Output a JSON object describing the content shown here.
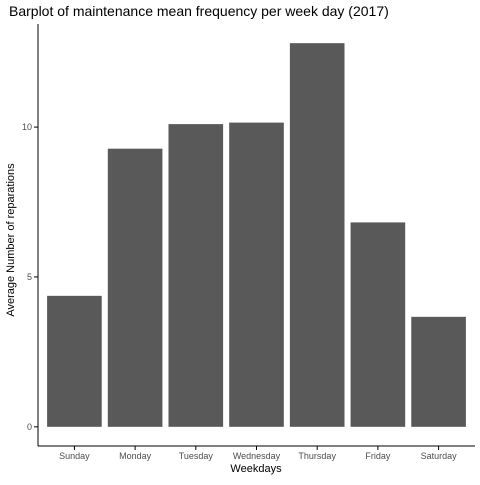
{
  "chart_data": {
    "type": "bar",
    "title": "Barplot of maintenance mean frequency per week day (2017)",
    "xlabel": "Weekdays",
    "ylabel": "Average Number of reparations",
    "categories": [
      "Sunday",
      "Monday",
      "Tuesday",
      "Wednesday",
      "Thursday",
      "Friday",
      "Saturday"
    ],
    "values": [
      4.37,
      9.28,
      10.1,
      10.15,
      12.8,
      6.82,
      3.67
    ],
    "y_ticks": [
      0,
      5,
      10
    ],
    "ylim": [
      -0.64,
      13.44
    ],
    "grid": false,
    "legend": "none",
    "colors": {
      "bar": "#595959",
      "axis": "#000000",
      "tick_label": "#4d4d4d"
    }
  }
}
